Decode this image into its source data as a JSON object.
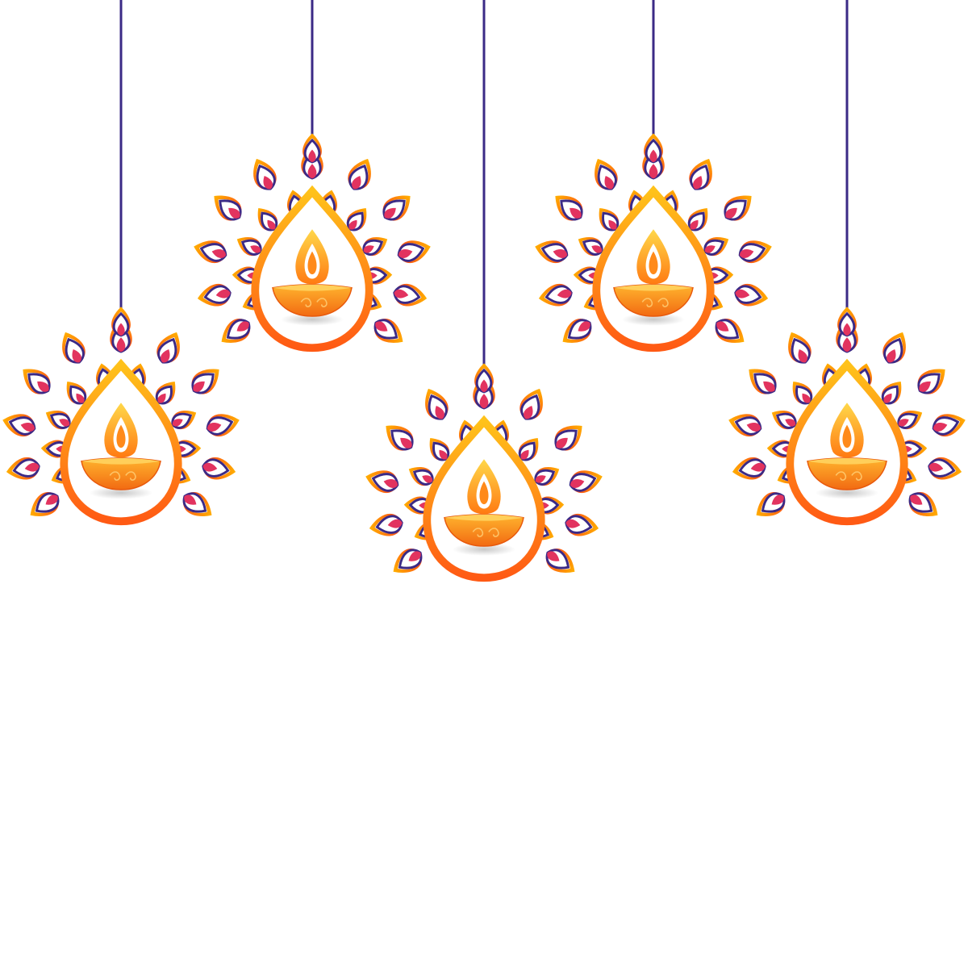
{
  "decoration": {
    "colors": {
      "background": "#ffffff",
      "string": "#3b2a86",
      "outline": "#3b2a86",
      "ring_top": "#ffc21a",
      "ring_bottom": "#ff5a14",
      "petal_accent": "#e2335f",
      "petal_white": "#ffffff",
      "bowl_top": "#ffb52e",
      "bowl_bottom": "#f26a12",
      "flame_outer": "#ff8a1a",
      "flame_inner": "#ffd84a"
    },
    "lanterns": [
      {
        "name": "hanging-diya-lantern-1",
        "icon": "diya-lamp-icon"
      },
      {
        "name": "hanging-diya-lantern-2",
        "icon": "diya-lamp-icon"
      },
      {
        "name": "hanging-diya-lantern-3",
        "icon": "diya-lamp-icon"
      },
      {
        "name": "hanging-diya-lantern-4",
        "icon": "diya-lamp-icon"
      },
      {
        "name": "hanging-diya-lantern-5",
        "icon": "diya-lamp-icon"
      }
    ]
  }
}
